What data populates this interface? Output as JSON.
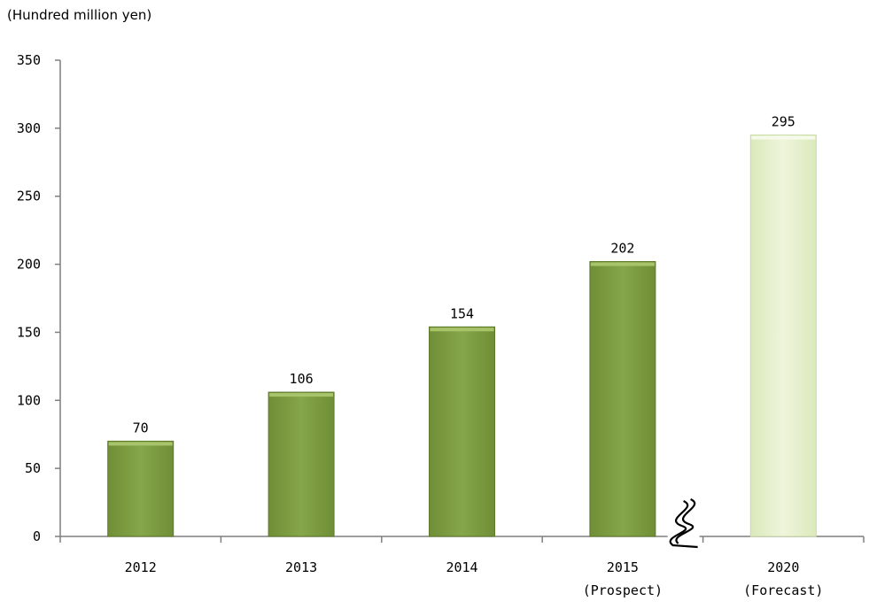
{
  "chart_data": {
    "type": "bar",
    "unit_label": "(Hundred million yen)",
    "categories": [
      {
        "label": "2012",
        "sublabel": ""
      },
      {
        "label": "2013",
        "sublabel": ""
      },
      {
        "label": "2014",
        "sublabel": ""
      },
      {
        "label": "2015",
        "sublabel": "(Prospect)"
      },
      {
        "label": "2020",
        "sublabel": "(Forecast)"
      }
    ],
    "values": [
      70,
      106,
      154,
      202,
      295
    ],
    "forecast_index": 4,
    "axis_break_before_index": 4,
    "ylim": [
      0,
      350
    ],
    "yticks": [
      0,
      50,
      100,
      150,
      200,
      250,
      300,
      350
    ],
    "grid": false,
    "legend": "none",
    "colors": {
      "bar": "#7f9f42",
      "bar_light": "#a8c46a",
      "bar_dark": "#5d7a2a",
      "forecast_bar": "#e8f2cf",
      "forecast_edge": "#c9dca4",
      "axis": "#7f7f7f"
    }
  }
}
